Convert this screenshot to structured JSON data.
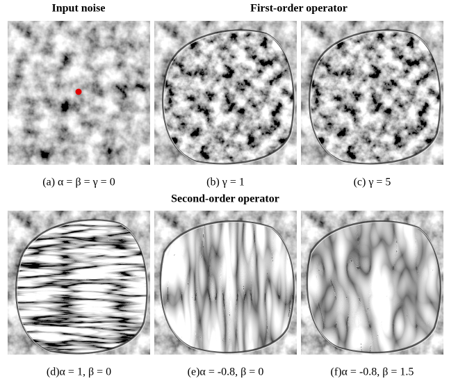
{
  "headings": {
    "input": "Input noise",
    "first": "First-order operator",
    "second": "Second-order operator"
  },
  "panels": [
    {
      "caption": "(a) α = β = γ = 0"
    },
    {
      "caption": "(b) γ = 1"
    },
    {
      "caption": "(c) γ = 5"
    },
    {
      "caption": "(d)α = 1, β = 0"
    },
    {
      "caption": "(e)α = -0.8, β = 0"
    },
    {
      "caption": "(f)α = -0.8, β = 1.5"
    }
  ]
}
